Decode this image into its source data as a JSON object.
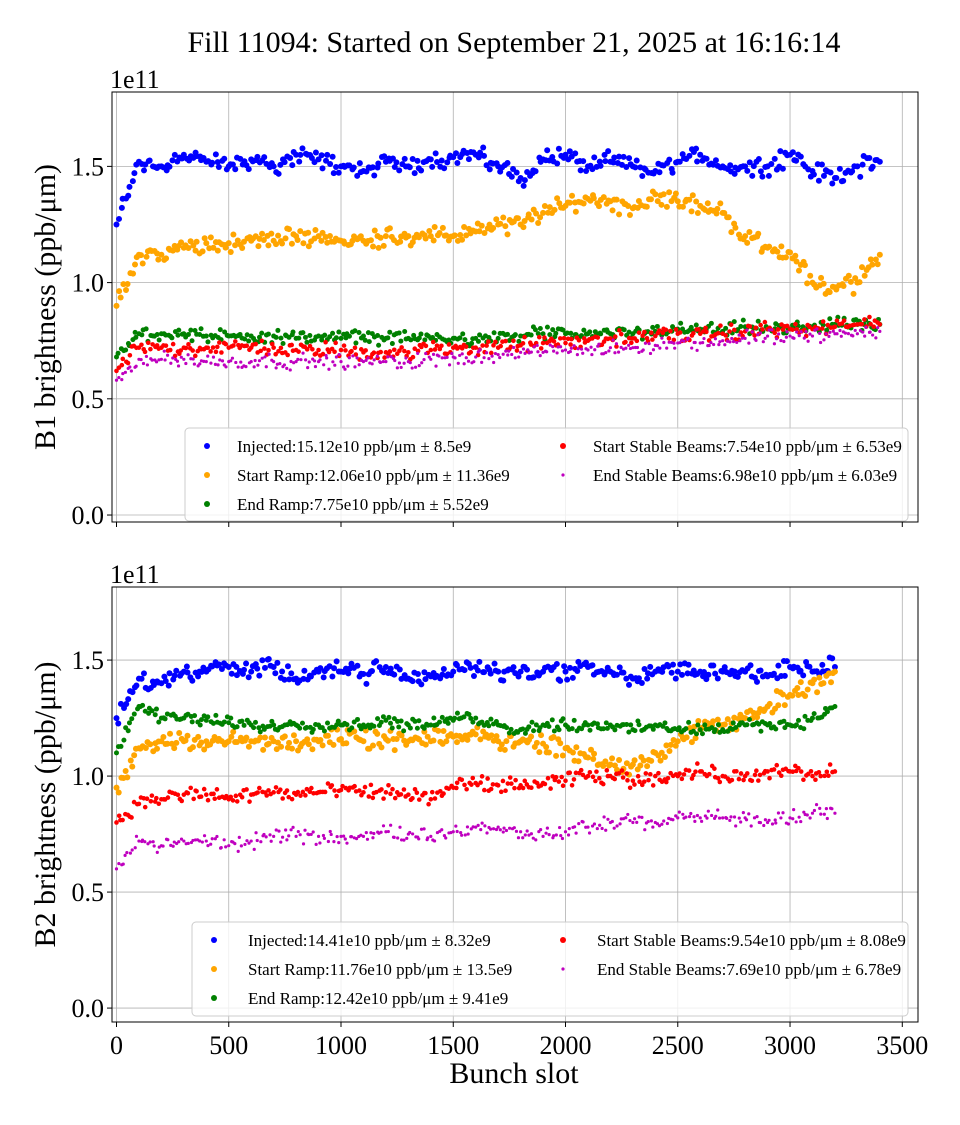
{
  "chart_data": {
    "type": "scatter",
    "title": "Fill 11094: Started on September 21, 2025 at 16:16:14",
    "xlabel": "Bunch slot",
    "xlim": [
      -20,
      3570
    ],
    "xticks": [
      0,
      500,
      1000,
      1500,
      2000,
      2500,
      3000,
      3500
    ],
    "grid": true,
    "colors": {
      "Injected": "#0000ff",
      "Start Ramp": "#ffa500",
      "End Ramp": "#008000",
      "Start Stable Beams": "#ff0000",
      "End Stable Beams": "#bf00bf"
    },
    "panels": [
      {
        "ylabel": "B1 brightness (ppb/μm)",
        "offset_label": "1e11",
        "ylim": [
          -0.03,
          1.82
        ],
        "yticks": [
          0.0,
          0.5,
          1.0,
          1.5
        ],
        "ytick_labels": [
          "0.0",
          "0.5",
          "1.0",
          "1.5"
        ],
        "legend_position": "lower-right",
        "x": [
          0,
          100,
          200,
          300,
          400,
          500,
          600,
          700,
          800,
          900,
          1000,
          1100,
          1200,
          1300,
          1400,
          1500,
          1600,
          1700,
          1800,
          1900,
          2000,
          2100,
          2200,
          2300,
          2400,
          2500,
          2600,
          2700,
          2800,
          2900,
          3000,
          3100,
          3200,
          3300,
          3400
        ],
        "series": [
          {
            "name": "Injected",
            "legend": "Injected:15.12e10 ppb/μm ± 8.5e9",
            "values": [
              1.25,
              1.52,
              1.5,
              1.55,
              1.52,
              1.5,
              1.53,
              1.5,
              1.55,
              1.53,
              1.5,
              1.48,
              1.52,
              1.5,
              1.53,
              1.54,
              1.55,
              1.5,
              1.45,
              1.53,
              1.55,
              1.5,
              1.52,
              1.5,
              1.48,
              1.52,
              1.55,
              1.5,
              1.5,
              1.5,
              1.55,
              1.48,
              1.45,
              1.5,
              1.52
            ]
          },
          {
            "name": "Start Ramp",
            "legend": "Start Ramp:12.06e10 ppb/μm ± 11.36e9",
            "values": [
              0.9,
              1.12,
              1.12,
              1.15,
              1.17,
              1.17,
              1.18,
              1.18,
              1.2,
              1.2,
              1.18,
              1.18,
              1.2,
              1.2,
              1.2,
              1.2,
              1.22,
              1.25,
              1.25,
              1.3,
              1.33,
              1.36,
              1.35,
              1.32,
              1.38,
              1.35,
              1.33,
              1.3,
              1.2,
              1.15,
              1.13,
              1.0,
              0.98,
              1.0,
              1.12
            ]
          },
          {
            "name": "End Ramp",
            "legend": "End Ramp:7.75e10 ppb/μm ± 5.52e9",
            "values": [
              0.68,
              0.78,
              0.78,
              0.78,
              0.77,
              0.77,
              0.77,
              0.77,
              0.76,
              0.77,
              0.76,
              0.77,
              0.76,
              0.76,
              0.76,
              0.76,
              0.76,
              0.76,
              0.77,
              0.78,
              0.78,
              0.78,
              0.78,
              0.78,
              0.79,
              0.8,
              0.8,
              0.79,
              0.81,
              0.8,
              0.8,
              0.81,
              0.82,
              0.82,
              0.82
            ]
          },
          {
            "name": "Start Stable Beams",
            "legend": "Start Stable Beams:7.54e10 ppb/μm ± 6.53e9",
            "values": [
              0.62,
              0.72,
              0.72,
              0.72,
              0.72,
              0.72,
              0.72,
              0.72,
              0.71,
              0.71,
              0.71,
              0.7,
              0.7,
              0.7,
              0.71,
              0.72,
              0.72,
              0.72,
              0.73,
              0.74,
              0.74,
              0.75,
              0.76,
              0.76,
              0.77,
              0.78,
              0.78,
              0.78,
              0.79,
              0.8,
              0.8,
              0.8,
              0.81,
              0.82,
              0.82
            ]
          },
          {
            "name": "End Stable Beams",
            "legend": "End Stable Beams:6.98e10 ppb/μm ± 6.03e9",
            "values": [
              0.58,
              0.67,
              0.67,
              0.67,
              0.66,
              0.66,
              0.66,
              0.66,
              0.66,
              0.66,
              0.66,
              0.66,
              0.66,
              0.66,
              0.67,
              0.68,
              0.68,
              0.69,
              0.7,
              0.7,
              0.71,
              0.71,
              0.72,
              0.72,
              0.73,
              0.74,
              0.74,
              0.75,
              0.76,
              0.77,
              0.77,
              0.77,
              0.78,
              0.78,
              0.79
            ]
          }
        ]
      },
      {
        "ylabel": "B2 brightness (ppb/μm)",
        "offset_label": "1e11",
        "ylim": [
          -0.06,
          1.815
        ],
        "yticks": [
          0.0,
          0.5,
          1.0,
          1.5
        ],
        "ytick_labels": [
          "0.0",
          "0.5",
          "1.0",
          "1.5"
        ],
        "legend_position": "lower-right",
        "x": [
          0,
          100,
          200,
          300,
          400,
          500,
          600,
          700,
          800,
          900,
          1000,
          1100,
          1200,
          1300,
          1400,
          1500,
          1600,
          1700,
          1800,
          1900,
          2000,
          2100,
          2200,
          2300,
          2400,
          2500,
          2600,
          2700,
          2800,
          2900,
          3000,
          3100,
          3200
        ],
        "series": [
          {
            "name": "Injected",
            "legend": "Injected:14.41e10 ppb/μm ± 8.32e9",
            "values": [
              1.25,
              1.42,
              1.4,
              1.45,
              1.45,
              1.47,
              1.45,
              1.47,
              1.42,
              1.45,
              1.45,
              1.44,
              1.47,
              1.42,
              1.43,
              1.45,
              1.47,
              1.45,
              1.45,
              1.45,
              1.45,
              1.47,
              1.45,
              1.42,
              1.45,
              1.45,
              1.45,
              1.45,
              1.45,
              1.43,
              1.47,
              1.45,
              1.47
            ]
          },
          {
            "name": "Start Ramp",
            "legend": "Start Ramp:11.76e10 ppb/μm ± 13.5e9",
            "values": [
              0.95,
              1.12,
              1.15,
              1.15,
              1.15,
              1.15,
              1.15,
              1.15,
              1.15,
              1.15,
              1.16,
              1.15,
              1.16,
              1.15,
              1.15,
              1.17,
              1.18,
              1.15,
              1.15,
              1.14,
              1.12,
              1.08,
              1.05,
              1.05,
              1.1,
              1.15,
              1.2,
              1.22,
              1.25,
              1.3,
              1.35,
              1.4,
              1.45
            ]
          },
          {
            "name": "End Ramp",
            "legend": "End Ramp:12.42e10 ppb/μm ± 9.41e9",
            "values": [
              1.1,
              1.3,
              1.25,
              1.25,
              1.24,
              1.23,
              1.22,
              1.22,
              1.22,
              1.22,
              1.22,
              1.22,
              1.24,
              1.22,
              1.22,
              1.24,
              1.25,
              1.22,
              1.2,
              1.22,
              1.22,
              1.22,
              1.22,
              1.2,
              1.22,
              1.2,
              1.2,
              1.2,
              1.22,
              1.22,
              1.22,
              1.25,
              1.3
            ]
          },
          {
            "name": "Start Stable Beams",
            "legend": "Start Stable Beams:9.54e10 ppb/μm ± 8.08e9",
            "values": [
              0.8,
              0.88,
              0.9,
              0.92,
              0.92,
              0.9,
              0.92,
              0.93,
              0.92,
              0.93,
              0.94,
              0.93,
              0.93,
              0.92,
              0.9,
              0.95,
              0.97,
              0.96,
              0.96,
              0.97,
              0.98,
              1.0,
              1.0,
              0.98,
              1.0,
              1.0,
              1.02,
              1.0,
              1.0,
              1.02,
              1.02,
              1.0,
              1.02
            ]
          },
          {
            "name": "End Stable Beams",
            "legend": "End Stable Beams:7.69e10 ppb/μm ± 6.78e9",
            "values": [
              0.6,
              0.72,
              0.7,
              0.72,
              0.72,
              0.7,
              0.72,
              0.74,
              0.74,
              0.74,
              0.74,
              0.74,
              0.76,
              0.75,
              0.74,
              0.76,
              0.78,
              0.78,
              0.76,
              0.74,
              0.76,
              0.78,
              0.8,
              0.8,
              0.8,
              0.82,
              0.82,
              0.82,
              0.82,
              0.8,
              0.82,
              0.84,
              0.84
            ]
          }
        ]
      }
    ]
  }
}
